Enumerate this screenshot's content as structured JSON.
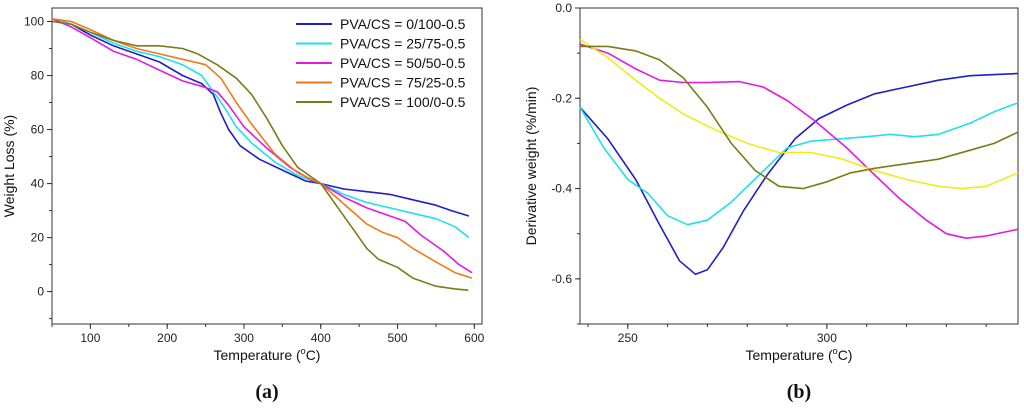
{
  "chart_data": [
    {
      "type": "line",
      "panel_label": "(a)",
      "xlabel_prefix": "Temperature (",
      "xlabel_sup": "o",
      "xlabel_suffix": "C)",
      "ylabel": "Weight Loss (%)",
      "xlim": [
        50,
        610
      ],
      "ylim": [
        -12,
        105
      ],
      "x_ticks": [
        100,
        200,
        300,
        400,
        500,
        600
      ],
      "y_ticks": [
        0,
        20,
        40,
        60,
        80,
        100
      ],
      "legend_position": "top-right",
      "series": [
        {
          "name": "PVA/CS = 0/100-0.5",
          "color": "#1f1fc8",
          "points": [
            [
              50,
              101
            ],
            [
              75,
              99
            ],
            [
              100,
              95
            ],
            [
              130,
              91
            ],
            [
              160,
              88
            ],
            [
              190,
              85
            ],
            [
              220,
              80
            ],
            [
              245,
              77
            ],
            [
              260,
              73
            ],
            [
              270,
              66
            ],
            [
              280,
              60
            ],
            [
              295,
              54
            ],
            [
              320,
              49
            ],
            [
              350,
              45
            ],
            [
              380,
              41
            ],
            [
              400,
              40
            ],
            [
              430,
              38
            ],
            [
              460,
              37
            ],
            [
              490,
              36
            ],
            [
              520,
              34
            ],
            [
              550,
              32
            ],
            [
              570,
              30
            ],
            [
              593,
              28
            ]
          ]
        },
        {
          "name": "PVA/CS = 25/75-0.5",
          "color": "#20e0ea",
          "points": [
            [
              50,
              101
            ],
            [
              75,
              99
            ],
            [
              100,
              96
            ],
            [
              130,
              92
            ],
            [
              160,
              89
            ],
            [
              190,
              87
            ],
            [
              220,
              84
            ],
            [
              245,
              80
            ],
            [
              260,
              74
            ],
            [
              275,
              68
            ],
            [
              290,
              61
            ],
            [
              310,
              55
            ],
            [
              340,
              48
            ],
            [
              370,
              43
            ],
            [
              400,
              40
            ],
            [
              430,
              36
            ],
            [
              460,
              33
            ],
            [
              490,
              31
            ],
            [
              520,
              29
            ],
            [
              550,
              27
            ],
            [
              575,
              24
            ],
            [
              593,
              20
            ]
          ]
        },
        {
          "name": "PVA/CS = 50/50-0.5",
          "color": "#e21be2",
          "points": [
            [
              50,
              101
            ],
            [
              75,
              98
            ],
            [
              100,
              94
            ],
            [
              130,
              89
            ],
            [
              160,
              86
            ],
            [
              190,
              82
            ],
            [
              220,
              78
            ],
            [
              245,
              76
            ],
            [
              265,
              74
            ],
            [
              280,
              69
            ],
            [
              300,
              61
            ],
            [
              330,
              53
            ],
            [
              360,
              46
            ],
            [
              390,
              41
            ],
            [
              400,
              40
            ],
            [
              430,
              35
            ],
            [
              460,
              31
            ],
            [
              490,
              28
            ],
            [
              510,
              26
            ],
            [
              530,
              21
            ],
            [
              560,
              15
            ],
            [
              580,
              10
            ],
            [
              597,
              7
            ]
          ]
        },
        {
          "name": "PVA/CS = 75/25-0.5",
          "color": "#f07a18",
          "points": [
            [
              50,
              101
            ],
            [
              75,
              100
            ],
            [
              100,
              97
            ],
            [
              130,
              93
            ],
            [
              160,
              90
            ],
            [
              190,
              88
            ],
            [
              220,
              86
            ],
            [
              250,
              84
            ],
            [
              270,
              79
            ],
            [
              290,
              70
            ],
            [
              310,
              62
            ],
            [
              340,
              51
            ],
            [
              370,
              44
            ],
            [
              400,
              40
            ],
            [
              420,
              35
            ],
            [
              440,
              30
            ],
            [
              460,
              25
            ],
            [
              480,
              22
            ],
            [
              500,
              20
            ],
            [
              520,
              16
            ],
            [
              550,
              11
            ],
            [
              575,
              7
            ],
            [
              597,
              5
            ]
          ]
        },
        {
          "name": "PVA/CS = 100/0-0.5",
          "color": "#7b7b16",
          "points": [
            [
              50,
              100
            ],
            [
              75,
              99
            ],
            [
              100,
              96
            ],
            [
              130,
              93
            ],
            [
              160,
              91
            ],
            [
              190,
              91
            ],
            [
              220,
              90
            ],
            [
              240,
              88
            ],
            [
              265,
              84
            ],
            [
              290,
              79
            ],
            [
              310,
              73
            ],
            [
              330,
              64
            ],
            [
              350,
              54
            ],
            [
              370,
              46
            ],
            [
              400,
              40
            ],
            [
              420,
              32
            ],
            [
              440,
              24
            ],
            [
              460,
              16
            ],
            [
              475,
              12
            ],
            [
              500,
              9
            ],
            [
              520,
              5
            ],
            [
              550,
              2
            ],
            [
              575,
              1
            ],
            [
              592,
              0.5
            ]
          ]
        }
      ]
    },
    {
      "type": "line",
      "panel_label": "(b)",
      "xlabel_prefix": "Temperature (",
      "xlabel_sup": "o",
      "xlabel_suffix": "C)",
      "ylabel": "Derivative weight (%/min)",
      "xlim": [
        238,
        348
      ],
      "ylim": [
        -0.7,
        0.0
      ],
      "x_ticks": [
        250,
        300
      ],
      "y_ticks": [
        0.0,
        -0.2,
        -0.4,
        -0.6
      ],
      "x_tick_labels": [
        "250",
        "300"
      ],
      "y_tick_labels": [
        "0.0",
        "-0.2",
        "-0.4",
        "-0.6"
      ],
      "series": [
        {
          "color": "#1f1fc8",
          "points": [
            [
              238,
              -0.22
            ],
            [
              245,
              -0.29
            ],
            [
              252,
              -0.38
            ],
            [
              258,
              -0.48
            ],
            [
              263,
              -0.56
            ],
            [
              267,
              -0.59
            ],
            [
              270,
              -0.58
            ],
            [
              274,
              -0.53
            ],
            [
              279,
              -0.45
            ],
            [
              285,
              -0.37
            ],
            [
              292,
              -0.29
            ],
            [
              298,
              -0.245
            ],
            [
              305,
              -0.215
            ],
            [
              312,
              -0.19
            ],
            [
              320,
              -0.175
            ],
            [
              328,
              -0.16
            ],
            [
              336,
              -0.15
            ],
            [
              348,
              -0.145
            ]
          ]
        },
        {
          "color": "#20e0ea",
          "points": [
            [
              238,
              -0.22
            ],
            [
              244,
              -0.31
            ],
            [
              250,
              -0.38
            ],
            [
              255,
              -0.41
            ],
            [
              260,
              -0.46
            ],
            [
              265,
              -0.48
            ],
            [
              270,
              -0.47
            ],
            [
              276,
              -0.43
            ],
            [
              283,
              -0.37
            ],
            [
              290,
              -0.31
            ],
            [
              296,
              -0.295
            ],
            [
              303,
              -0.29
            ],
            [
              310,
              -0.285
            ],
            [
              316,
              -0.28
            ],
            [
              322,
              -0.285
            ],
            [
              328,
              -0.28
            ],
            [
              336,
              -0.255
            ],
            [
              342,
              -0.23
            ],
            [
              348,
              -0.21
            ]
          ]
        },
        {
          "color": "#e21be2",
          "points": [
            [
              238,
              -0.08
            ],
            [
              245,
              -0.1
            ],
            [
              252,
              -0.135
            ],
            [
              258,
              -0.16
            ],
            [
              264,
              -0.165
            ],
            [
              270,
              -0.165
            ],
            [
              278,
              -0.163
            ],
            [
              284,
              -0.175
            ],
            [
              290,
              -0.205
            ],
            [
              297,
              -0.25
            ],
            [
              305,
              -0.31
            ],
            [
              312,
              -0.37
            ],
            [
              318,
              -0.42
            ],
            [
              325,
              -0.47
            ],
            [
              330,
              -0.5
            ],
            [
              335,
              -0.51
            ],
            [
              340,
              -0.505
            ],
            [
              348,
              -0.49
            ]
          ]
        },
        {
          "color": "#eded1c",
          "points": [
            [
              238,
              -0.07
            ],
            [
              245,
              -0.11
            ],
            [
              252,
              -0.16
            ],
            [
              258,
              -0.2
            ],
            [
              264,
              -0.235
            ],
            [
              272,
              -0.27
            ],
            [
              280,
              -0.3
            ],
            [
              288,
              -0.32
            ],
            [
              296,
              -0.32
            ],
            [
              304,
              -0.335
            ],
            [
              312,
              -0.36
            ],
            [
              320,
              -0.38
            ],
            [
              328,
              -0.395
            ],
            [
              334,
              -0.4
            ],
            [
              340,
              -0.395
            ],
            [
              348,
              -0.365
            ]
          ]
        },
        {
          "color": "#7b7b16",
          "points": [
            [
              238,
              -0.085
            ],
            [
              245,
              -0.085
            ],
            [
              252,
              -0.095
            ],
            [
              258,
              -0.115
            ],
            [
              264,
              -0.155
            ],
            [
              270,
              -0.22
            ],
            [
              276,
              -0.3
            ],
            [
              282,
              -0.36
            ],
            [
              288,
              -0.395
            ],
            [
              294,
              -0.4
            ],
            [
              300,
              -0.385
            ],
            [
              306,
              -0.365
            ],
            [
              312,
              -0.355
            ],
            [
              320,
              -0.345
            ],
            [
              328,
              -0.335
            ],
            [
              336,
              -0.315
            ],
            [
              342,
              -0.3
            ],
            [
              348,
              -0.275
            ]
          ]
        }
      ]
    }
  ]
}
